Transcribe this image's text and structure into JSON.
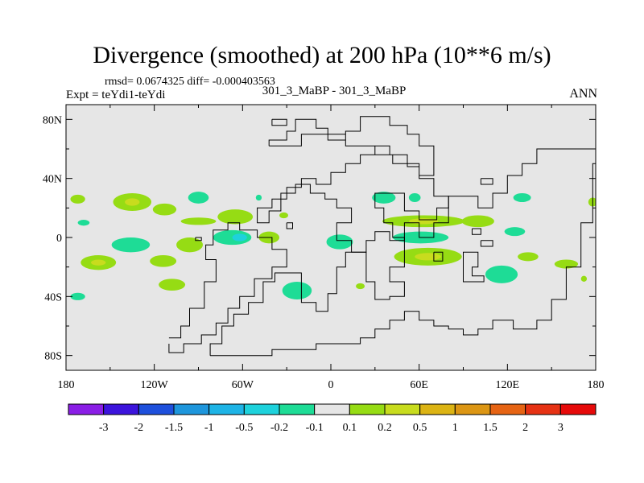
{
  "chart_data": {
    "type": "heatmap",
    "title": "Divergence (smoothed) at 200 hPa (10**6 m/s)",
    "subtitle": "rmsd= 0.0674325 diff= -0.000403563",
    "left_label": "Expt = teYdi1-teYdi",
    "center_label": "301_3_MaBP - 301_3_MaBP",
    "right_label": "ANN",
    "x_range": [
      -180,
      180
    ],
    "y_range": [
      -90,
      90
    ],
    "x_ticks": [
      {
        "value": -180,
        "label": "180"
      },
      {
        "value": -120,
        "label": "120W"
      },
      {
        "value": -60,
        "label": "60W"
      },
      {
        "value": 0,
        "label": "0"
      },
      {
        "value": 60,
        "label": "60E"
      },
      {
        "value": 120,
        "label": "120E"
      },
      {
        "value": 180,
        "label": "180"
      }
    ],
    "y_ticks": [
      {
        "value": 80,
        "label": "80N"
      },
      {
        "value": 40,
        "label": "40N"
      },
      {
        "value": 0,
        "label": "0"
      },
      {
        "value": -40,
        "label": "40S"
      },
      {
        "value": -80,
        "label": "80S"
      }
    ],
    "colorbar": {
      "colors": [
        "#8a1ee6",
        "#3c14dc",
        "#1e50dc",
        "#1e96dc",
        "#1eb4e6",
        "#1ed2dc",
        "#1edc96",
        "#e6e6e6",
        "#96dc14",
        "#c8dc1e",
        "#dcb414",
        "#dc9614",
        "#e66414",
        "#e63214",
        "#e60a0a"
      ],
      "levels": [
        "-3",
        "-2",
        "-1.5",
        "-1",
        "-0.5",
        "-0.2",
        "-0.1",
        "0.1",
        "0.2",
        "0.5",
        "1",
        "1.5",
        "2",
        "3"
      ]
    },
    "field_blobs": [
      {
        "lon": -172,
        "lat": 26,
        "rlon": 5,
        "rlat": 3,
        "level": 0.15
      },
      {
        "lon": -135,
        "lat": 24,
        "rlon": 13,
        "rlat": 6,
        "level": 0.15
      },
      {
        "lon": -135,
        "lat": 24,
        "rlon": 5,
        "rlat": 2.5,
        "level": 0.3
      },
      {
        "lon": -113,
        "lat": 19,
        "rlon": 8,
        "rlat": 4,
        "level": 0.15
      },
      {
        "lon": -168,
        "lat": 10,
        "rlon": 4,
        "rlat": 2,
        "level": -0.15
      },
      {
        "lon": -90,
        "lat": 27,
        "rlon": 7,
        "rlat": 4,
        "level": -0.15
      },
      {
        "lon": -65,
        "lat": 14,
        "rlon": 12,
        "rlat": 5,
        "level": 0.15
      },
      {
        "lon": -90,
        "lat": 11,
        "rlon": 12,
        "rlat": 2.5,
        "level": 0.15
      },
      {
        "lon": -32,
        "lat": 15,
        "rlon": 3,
        "rlat": 2,
        "level": 0.15
      },
      {
        "lon": -136,
        "lat": -5,
        "rlon": 13,
        "rlat": 5,
        "level": -0.15
      },
      {
        "lon": -96,
        "lat": -5,
        "rlon": 9,
        "rlat": 5,
        "level": 0.15
      },
      {
        "lon": -67,
        "lat": 0,
        "rlon": 13,
        "rlat": 5,
        "level": -0.15
      },
      {
        "lon": -62,
        "lat": 0,
        "rlon": 5,
        "rlat": 2.5,
        "level": -0.35
      },
      {
        "lon": -42,
        "lat": 0,
        "rlon": 7,
        "rlat": 4,
        "level": 0.15
      },
      {
        "lon": -158,
        "lat": -17,
        "rlon": 12,
        "rlat": 5,
        "level": 0.15
      },
      {
        "lon": -158,
        "lat": -17,
        "rlon": 5,
        "rlat": 2,
        "level": 0.3
      },
      {
        "lon": -114,
        "lat": -16,
        "rlon": 9,
        "rlat": 4,
        "level": 0.15
      },
      {
        "lon": -108,
        "lat": -32,
        "rlon": 9,
        "rlat": 4,
        "level": 0.15
      },
      {
        "lon": -172,
        "lat": -40,
        "rlon": 5,
        "rlat": 2.5,
        "level": -0.15
      },
      {
        "lon": -23,
        "lat": -36,
        "rlon": 10,
        "rlat": 6,
        "level": -0.15
      },
      {
        "lon": 6,
        "lat": -3,
        "rlon": 9,
        "rlat": 5,
        "level": -0.15
      },
      {
        "lon": 36,
        "lat": 27,
        "rlon": 8,
        "rlat": 4,
        "level": -0.15
      },
      {
        "lon": 63,
        "lat": 11,
        "rlon": 28,
        "rlat": 4,
        "level": 0.15
      },
      {
        "lon": 63,
        "lat": 11,
        "rlon": 10,
        "rlat": 2,
        "level": 0.3
      },
      {
        "lon": 100,
        "lat": 11,
        "rlon": 11,
        "rlat": 4,
        "level": 0.15
      },
      {
        "lon": 61,
        "lat": 0,
        "rlon": 19,
        "rlat": 4,
        "level": -0.15
      },
      {
        "lon": 66,
        "lat": -13,
        "rlon": 23,
        "rlat": 6,
        "level": 0.15
      },
      {
        "lon": 66,
        "lat": -13,
        "rlon": 9,
        "rlat": 2.5,
        "level": 0.3
      },
      {
        "lon": 116,
        "lat": -25,
        "rlon": 11,
        "rlat": 6,
        "level": -0.15
      },
      {
        "lon": 57,
        "lat": 27,
        "rlon": 4,
        "rlat": 3,
        "level": -0.15
      },
      {
        "lon": 130,
        "lat": 27,
        "rlon": 6,
        "rlat": 3,
        "level": -0.15
      },
      {
        "lon": 125,
        "lat": 4,
        "rlon": 7,
        "rlat": 3,
        "level": -0.15
      },
      {
        "lon": 134,
        "lat": -13,
        "rlon": 7,
        "rlat": 3,
        "level": 0.15
      },
      {
        "lon": 160,
        "lat": -18,
        "rlon": 8,
        "rlat": 3,
        "level": 0.15
      },
      {
        "lon": 178,
        "lat": 24,
        "rlon": 3,
        "rlat": 3,
        "level": 0.15
      },
      {
        "lon": 20,
        "lat": -33,
        "rlon": 3,
        "rlat": 2,
        "level": 0.15
      },
      {
        "lon": 172,
        "lat": -28,
        "rlon": 2,
        "rlat": 2,
        "level": 0.15
      },
      {
        "lon": -49,
        "lat": 27,
        "rlon": 2,
        "rlat": 2,
        "level": -0.15
      }
    ],
    "continent_outlines": [
      [
        [
          -110,
          -72
        ],
        [
          -110,
          -78
        ],
        [
          -100,
          -78
        ],
        [
          -100,
          -72
        ],
        [
          -88,
          -72
        ],
        [
          -88,
          -66
        ],
        [
          -78,
          -66
        ],
        [
          -78,
          -58
        ],
        [
          -70,
          -58
        ],
        [
          -70,
          -48
        ],
        [
          -62,
          -48
        ],
        [
          -62,
          -40
        ],
        [
          -52,
          -40
        ],
        [
          -52,
          -28
        ],
        [
          -40,
          -28
        ],
        [
          -40,
          -20
        ],
        [
          -30,
          -20
        ],
        [
          -30,
          -8
        ],
        [
          -40,
          -8
        ],
        [
          -40,
          0
        ],
        [
          -50,
          0
        ],
        [
          -50,
          5
        ],
        [
          -62,
          5
        ],
        [
          -62,
          10
        ],
        [
          -70,
          10
        ],
        [
          -70,
          5
        ],
        [
          -80,
          5
        ],
        [
          -80,
          -5
        ],
        [
          -85,
          -5
        ],
        [
          -85,
          -15
        ],
        [
          -78,
          -15
        ],
        [
          -78,
          -30
        ],
        [
          -86,
          -30
        ],
        [
          -86,
          -48
        ],
        [
          -96,
          -48
        ],
        [
          -96,
          -60
        ],
        [
          -102,
          -60
        ],
        [
          -102,
          -68
        ],
        [
          -110,
          -68
        ]
      ],
      [
        [
          -82,
          -80
        ],
        [
          -82,
          -72
        ],
        [
          -74,
          -72
        ],
        [
          -74,
          -60
        ],
        [
          -66,
          -60
        ],
        [
          -66,
          -52
        ],
        [
          -56,
          -52
        ],
        [
          -56,
          -44
        ],
        [
          -46,
          -44
        ],
        [
          -46,
          -30
        ],
        [
          -38,
          -30
        ],
        [
          -38,
          -24
        ],
        [
          -20,
          -24
        ],
        [
          -20,
          -44
        ],
        [
          -10,
          -44
        ],
        [
          -10,
          -50
        ],
        [
          -2,
          -50
        ],
        [
          -2,
          -38
        ],
        [
          4,
          -38
        ],
        [
          4,
          -20
        ],
        [
          10,
          -20
        ],
        [
          10,
          -10
        ],
        [
          24,
          -10
        ],
        [
          24,
          -30
        ],
        [
          30,
          -30
        ],
        [
          30,
          -42
        ],
        [
          40,
          -42
        ],
        [
          40,
          -40
        ],
        [
          50,
          -40
        ],
        [
          50,
          -30
        ],
        [
          40,
          -30
        ],
        [
          40,
          -20
        ],
        [
          50,
          -20
        ],
        [
          50,
          0
        ],
        [
          42,
          0
        ],
        [
          42,
          10
        ],
        [
          36,
          10
        ],
        [
          36,
          20
        ],
        [
          30,
          20
        ],
        [
          30,
          30
        ],
        [
          50,
          30
        ],
        [
          50,
          18
        ],
        [
          60,
          18
        ],
        [
          60,
          12
        ],
        [
          72,
          12
        ],
        [
          72,
          20
        ],
        [
          80,
          20
        ],
        [
          80,
          28
        ],
        [
          100,
          28
        ],
        [
          100,
          20
        ],
        [
          110,
          20
        ],
        [
          110,
          30
        ],
        [
          120,
          30
        ],
        [
          120,
          42
        ],
        [
          130,
          42
        ],
        [
          130,
          50
        ],
        [
          140,
          50
        ],
        [
          140,
          60
        ],
        [
          180,
          60
        ],
        [
          180,
          50
        ],
        [
          178,
          50
        ],
        [
          178,
          10
        ],
        [
          170,
          10
        ],
        [
          170,
          -20
        ],
        [
          160,
          -20
        ],
        [
          160,
          -42
        ],
        [
          150,
          -42
        ],
        [
          150,
          -56
        ],
        [
          140,
          -56
        ],
        [
          140,
          -62
        ],
        [
          124,
          -62
        ],
        [
          124,
          -56
        ],
        [
          110,
          -56
        ],
        [
          110,
          -62
        ],
        [
          100,
          -62
        ],
        [
          100,
          -66
        ],
        [
          90,
          -66
        ],
        [
          90,
          -62
        ],
        [
          80,
          -62
        ],
        [
          80,
          -60
        ],
        [
          70,
          -60
        ],
        [
          70,
          -56
        ],
        [
          60,
          -56
        ],
        [
          60,
          -50
        ],
        [
          50,
          -50
        ],
        [
          50,
          -56
        ],
        [
          40,
          -56
        ],
        [
          40,
          -62
        ],
        [
          30,
          -62
        ],
        [
          30,
          -68
        ],
        [
          20,
          -68
        ],
        [
          20,
          -72
        ],
        [
          -10,
          -72
        ],
        [
          -10,
          -76
        ],
        [
          -40,
          -76
        ],
        [
          -40,
          -80
        ],
        [
          -82,
          -80
        ]
      ],
      [
        [
          -42,
          62
        ],
        [
          -42,
          66
        ],
        [
          -30,
          66
        ],
        [
          -30,
          72
        ],
        [
          -24,
          72
        ],
        [
          -24,
          80
        ],
        [
          -10,
          80
        ],
        [
          -10,
          74
        ],
        [
          -2,
          74
        ],
        [
          -2,
          66
        ],
        [
          10,
          66
        ],
        [
          10,
          72
        ],
        [
          20,
          72
        ],
        [
          20,
          82
        ],
        [
          40,
          82
        ],
        [
          40,
          76
        ],
        [
          52,
          76
        ],
        [
          52,
          70
        ],
        [
          60,
          70
        ],
        [
          60,
          62
        ],
        [
          70,
          62
        ],
        [
          70,
          42
        ],
        [
          60,
          42
        ],
        [
          60,
          48
        ],
        [
          52,
          48
        ],
        [
          52,
          56
        ],
        [
          40,
          56
        ],
        [
          40,
          62
        ],
        [
          30,
          62
        ],
        [
          30,
          56
        ],
        [
          20,
          56
        ],
        [
          20,
          50
        ],
        [
          10,
          50
        ],
        [
          10,
          44
        ],
        [
          0,
          44
        ],
        [
          0,
          36
        ],
        [
          -10,
          36
        ],
        [
          -10,
          40
        ],
        [
          -20,
          40
        ],
        [
          -20,
          34
        ],
        [
          -30,
          34
        ],
        [
          -30,
          26
        ],
        [
          -40,
          26
        ],
        [
          -40,
          20
        ],
        [
          -50,
          20
        ],
        [
          -50,
          10
        ],
        [
          -42,
          10
        ],
        [
          -42,
          18
        ],
        [
          -34,
          18
        ],
        [
          -34,
          30
        ],
        [
          -24,
          30
        ],
        [
          -24,
          36
        ],
        [
          -14,
          36
        ],
        [
          -14,
          30
        ],
        [
          -4,
          30
        ],
        [
          -4,
          26
        ],
        [
          4,
          26
        ],
        [
          4,
          20
        ],
        [
          14,
          20
        ],
        [
          14,
          10
        ],
        [
          4,
          10
        ],
        [
          4,
          -2
        ],
        [
          14,
          -2
        ],
        [
          14,
          -10
        ],
        [
          24,
          -10
        ],
        [
          24,
          -2
        ],
        [
          30,
          -2
        ],
        [
          30,
          4
        ],
        [
          40,
          4
        ],
        [
          40,
          -2
        ],
        [
          50,
          -2
        ],
        [
          50,
          10
        ],
        [
          60,
          10
        ],
        [
          60,
          0
        ],
        [
          70,
          0
        ],
        [
          70,
          10
        ],
        [
          80,
          10
        ],
        [
          80,
          28
        ],
        [
          70,
          28
        ],
        [
          70,
          40
        ],
        [
          60,
          40
        ],
        [
          60,
          50
        ],
        [
          42,
          50
        ],
        [
          42,
          56
        ],
        [
          30,
          56
        ],
        [
          30,
          62
        ],
        [
          10,
          62
        ],
        [
          10,
          70
        ],
        [
          -20,
          70
        ],
        [
          -20,
          62
        ],
        [
          -42,
          62
        ]
      ],
      [
        [
          90,
          -20
        ],
        [
          90,
          -10
        ],
        [
          100,
          -10
        ],
        [
          100,
          -20
        ],
        [
          96,
          -20
        ],
        [
          96,
          -26
        ],
        [
          104,
          -26
        ],
        [
          104,
          -30
        ],
        [
          90,
          -30
        ],
        [
          90,
          -20
        ]
      ],
      [
        [
          -92,
          0
        ],
        [
          -92,
          -2
        ],
        [
          -88,
          -2
        ],
        [
          -88,
          0
        ],
        [
          -92,
          0
        ]
      ],
      [
        [
          -30,
          10
        ],
        [
          -30,
          6
        ],
        [
          -26,
          6
        ],
        [
          -26,
          10
        ],
        [
          -30,
          10
        ]
      ],
      [
        [
          70,
          -10
        ],
        [
          70,
          -16
        ],
        [
          76,
          -16
        ],
        [
          76,
          -10
        ],
        [
          70,
          -10
        ]
      ],
      [
        [
          102,
          -2
        ],
        [
          102,
          -6
        ],
        [
          110,
          -6
        ],
        [
          110,
          -2
        ],
        [
          102,
          -2
        ]
      ],
      [
        [
          96,
          6
        ],
        [
          96,
          2
        ],
        [
          102,
          2
        ],
        [
          102,
          6
        ],
        [
          96,
          6
        ]
      ],
      [
        [
          102,
          40
        ],
        [
          102,
          36
        ],
        [
          110,
          36
        ],
        [
          110,
          40
        ],
        [
          102,
          40
        ]
      ],
      [
        [
          -40,
          80
        ],
        [
          -40,
          76
        ],
        [
          -30,
          76
        ],
        [
          -30,
          80
        ],
        [
          -40,
          80
        ]
      ]
    ]
  }
}
